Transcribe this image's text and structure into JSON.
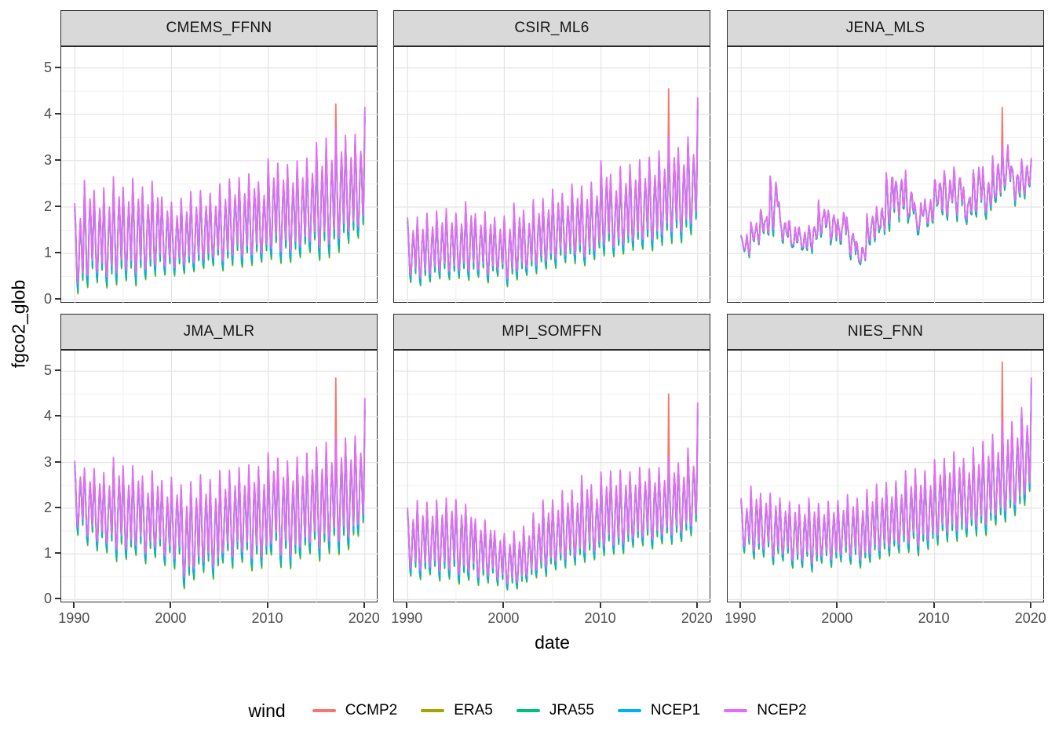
{
  "figure": {
    "y_axis_title": "fgco2_glob",
    "x_axis_title": "date",
    "legend": {
      "title": "wind",
      "entries": [
        {
          "label": "CCMP2",
          "color": "#F8766D"
        },
        {
          "label": "ERA5",
          "color": "#A3A500"
        },
        {
          "label": "JRA55",
          "color": "#00BF7D"
        },
        {
          "label": "NCEP1",
          "color": "#00B0F6"
        },
        {
          "label": "NCEP2",
          "color": "#E76BF3"
        }
      ]
    },
    "theme": {
      "strip_bg": "#d9d9d9",
      "panel_border": "#2b2b2b",
      "grid_major": "#e4e4e4",
      "grid_minor": "#efefef",
      "tick_text": "#4d4d4d"
    }
  },
  "chart_data": {
    "type": "line",
    "x_unit": "year",
    "frequency": "monthly",
    "xlabel": "date",
    "ylabel": "fgco2_glob",
    "x_range_data": [
      1990,
      2020
    ],
    "x_domain": [
      1988.6,
      2021.4
    ],
    "y_domain": [
      -0.08,
      5.45
    ],
    "x_breaks": [
      1990,
      2000,
      2010,
      2020
    ],
    "x_break_labels": [
      "1990",
      "2000",
      "2010",
      "2020"
    ],
    "x_minor": [
      1995,
      2005,
      2015
    ],
    "y_breaks": [
      0,
      1,
      2,
      3,
      4,
      5
    ],
    "y_break_labels": [
      "0",
      "1",
      "2",
      "3",
      "4",
      "5"
    ],
    "y_minor": [
      0.5,
      1.5,
      2.5,
      3.5,
      4.5
    ],
    "monthly_shape": [
      1.0,
      0.5,
      -0.25,
      -0.85,
      -1.0,
      -0.45,
      0.2,
      0.62,
      0.28,
      -0.35,
      -0.72,
      0.15
    ],
    "series": [
      {
        "name": "CCMP2",
        "color": "#F8766D",
        "up": 0.86,
        "down": 1.04
      },
      {
        "name": "ERA5",
        "color": "#A3A500",
        "up": 0.84,
        "down": 1.12
      },
      {
        "name": "JRA55",
        "color": "#00BF7D",
        "up": 0.88,
        "down": 1.09
      },
      {
        "name": "NCEP1",
        "color": "#00B0F6",
        "up": 0.94,
        "down": 1.0
      },
      {
        "name": "NCEP2",
        "color": "#E76BF3",
        "up": 1.0,
        "down": 0.88
      }
    ],
    "facets": [
      {
        "name": "CMEMS_FFNN",
        "years_start": 1990,
        "annual_peaks": [
          2.1,
          2.55,
          2.35,
          2.4,
          2.65,
          2.45,
          2.6,
          2.4,
          2.55,
          2.2,
          2.1,
          2.2,
          2.3,
          2.35,
          2.3,
          2.5,
          2.6,
          2.65,
          2.75,
          2.55,
          3.0,
          2.95,
          2.9,
          3.0,
          3.1,
          3.35,
          3.45,
          3.65,
          3.5,
          3.6
        ],
        "annual_troughs": [
          0.25,
          0.4,
          0.45,
          0.35,
          0.45,
          0.5,
          0.45,
          0.55,
          0.6,
          0.65,
          0.6,
          0.65,
          0.7,
          0.75,
          0.8,
          0.75,
          0.85,
          0.8,
          0.85,
          0.9,
          1.0,
          0.95,
          0.9,
          1.0,
          1.1,
          1.0,
          1.1,
          1.2,
          1.3,
          1.45
        ],
        "final_2020": 4.15,
        "ccmp2_spike": {
          "t": 2017.0,
          "value": 4.22
        },
        "seasonal_scale": 1.0,
        "noise_scale": 0.07
      },
      {
        "name": "CSIR_ML6",
        "years_start": 1990,
        "annual_peaks": [
          1.75,
          1.8,
          1.85,
          1.9,
          1.95,
          1.9,
          2.1,
          1.85,
          1.9,
          1.75,
          1.8,
          2.05,
          1.9,
          2.15,
          2.2,
          2.4,
          2.3,
          2.5,
          2.45,
          2.55,
          3.0,
          2.7,
          2.85,
          2.9,
          3.0,
          3.1,
          3.2,
          3.5,
          3.3,
          3.5
        ],
        "annual_troughs": [
          0.45,
          0.4,
          0.45,
          0.5,
          0.5,
          0.55,
          0.5,
          0.55,
          0.45,
          0.55,
          0.4,
          0.5,
          0.6,
          0.65,
          0.75,
          0.8,
          0.85,
          0.9,
          0.8,
          0.95,
          1.1,
          1.0,
          1.05,
          1.15,
          1.2,
          1.15,
          1.3,
          1.3,
          1.35,
          1.55
        ],
        "final_2020": 4.35,
        "ccmp2_spike": {
          "t": 2017.0,
          "value": 4.55
        },
        "seasonal_scale": 1.0,
        "noise_scale": 0.07
      },
      {
        "name": "JENA_MLS",
        "years_start": 1990,
        "annual_peaks": [
          1.55,
          1.8,
          2.1,
          2.75,
          1.95,
          1.75,
          1.7,
          1.85,
          2.35,
          2.2,
          2.1,
          1.8,
          1.35,
          2.1,
          2.3,
          3.0,
          2.85,
          2.9,
          2.35,
          2.4,
          2.9,
          2.85,
          3.0,
          2.7,
          3.0,
          3.1,
          3.3,
          3.5,
          3.2,
          3.1
        ],
        "annual_troughs": [
          0.9,
          1.0,
          1.2,
          1.4,
          1.1,
          1.0,
          0.95,
          1.0,
          1.2,
          1.1,
          1.05,
          0.9,
          0.65,
          1.1,
          1.3,
          1.6,
          1.55,
          1.5,
          1.4,
          1.45,
          1.6,
          1.6,
          1.7,
          1.55,
          1.7,
          1.8,
          1.9,
          2.1,
          2.0,
          2.2
        ],
        "final_2020": 3.05,
        "ccmp2_spike": {
          "t": 2017.0,
          "value": 4.15
        },
        "seasonal_scale": 0.65,
        "noise_scale": 0.55
      },
      {
        "name": "JMA_MLR",
        "years_start": 1990,
        "annual_peaks": [
          3.0,
          2.9,
          2.85,
          2.8,
          3.1,
          2.9,
          2.9,
          2.7,
          2.8,
          2.6,
          2.65,
          2.5,
          2.6,
          2.7,
          2.6,
          2.8,
          2.85,
          2.9,
          3.0,
          2.9,
          3.2,
          3.1,
          3.0,
          3.1,
          3.2,
          3.3,
          3.4,
          3.55,
          3.5,
          3.6
        ],
        "annual_troughs": [
          1.5,
          1.3,
          1.2,
          1.1,
          1.0,
          0.95,
          1.05,
          0.9,
          1.0,
          0.85,
          0.8,
          0.35,
          0.55,
          0.7,
          0.6,
          0.9,
          0.85,
          0.9,
          0.75,
          0.8,
          1.1,
          0.85,
          0.8,
          1.0,
          1.1,
          1.0,
          1.15,
          1.1,
          1.2,
          1.5
        ],
        "final_2020": 4.4,
        "ccmp2_spike": {
          "t": 2017.0,
          "value": 4.85
        },
        "seasonal_scale": 1.0,
        "noise_scale": 0.07
      },
      {
        "name": "MPI_SOMFFN",
        "years_start": 1990,
        "annual_peaks": [
          2.0,
          2.15,
          2.1,
          2.2,
          2.25,
          2.2,
          2.1,
          1.8,
          1.75,
          1.5,
          1.45,
          1.5,
          1.6,
          1.9,
          2.2,
          2.2,
          2.4,
          2.4,
          2.75,
          2.5,
          2.8,
          2.8,
          2.85,
          2.8,
          2.9,
          2.9,
          2.9,
          3.1,
          3.0,
          3.3
        ],
        "annual_troughs": [
          0.6,
          0.55,
          0.6,
          0.5,
          0.55,
          0.45,
          0.5,
          0.4,
          0.45,
          0.35,
          0.25,
          0.3,
          0.45,
          0.55,
          0.6,
          0.75,
          0.8,
          0.85,
          0.9,
          0.95,
          1.1,
          1.05,
          1.1,
          1.2,
          1.25,
          1.2,
          1.3,
          1.3,
          1.35,
          1.5
        ],
        "final_2020": 4.3,
        "ccmp2_spike": {
          "t": 2017.0,
          "value": 4.5
        },
        "seasonal_scale": 1.0,
        "noise_scale": 0.07
      },
      {
        "name": "NIES_FNN",
        "years_start": 1990,
        "annual_peaks": [
          2.2,
          2.5,
          2.35,
          2.3,
          2.2,
          2.15,
          2.1,
          2.2,
          2.1,
          2.15,
          2.2,
          2.3,
          2.2,
          2.4,
          2.5,
          2.55,
          2.6,
          2.8,
          2.85,
          2.8,
          3.1,
          3.1,
          3.25,
          3.1,
          3.3,
          3.5,
          3.6,
          3.9,
          3.9,
          4.2
        ],
        "annual_troughs": [
          1.1,
          0.95,
          1.0,
          0.85,
          0.9,
          0.75,
          0.8,
          0.7,
          0.85,
          0.8,
          0.9,
          0.85,
          0.75,
          0.9,
          1.0,
          1.05,
          1.1,
          1.15,
          1.1,
          1.2,
          1.3,
          1.35,
          1.4,
          1.45,
          1.5,
          1.55,
          1.7,
          1.8,
          1.95,
          2.2
        ],
        "final_2020": 4.85,
        "ccmp2_spike": {
          "t": 2017.0,
          "value": 5.2
        },
        "seasonal_scale": 1.0,
        "noise_scale": 0.07
      }
    ]
  }
}
